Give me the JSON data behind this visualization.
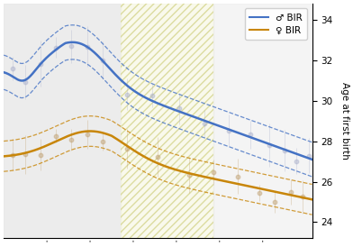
{
  "title": "",
  "ylabel": "Age at first birth",
  "ylim": [
    23.2,
    34.8
  ],
  "yticks": [
    24,
    26,
    28,
    30,
    32,
    34
  ],
  "xlim": [
    0,
    100
  ],
  "grey_bg": [
    0,
    38
  ],
  "hatch_bg": [
    38,
    68
  ],
  "light_bg": [
    68,
    100
  ],
  "male_color": "#4472C4",
  "female_color": "#C8860A",
  "male_scatter": "#aab0cc",
  "female_scatter": "#c0a070",
  "legend_loc": "upper right"
}
